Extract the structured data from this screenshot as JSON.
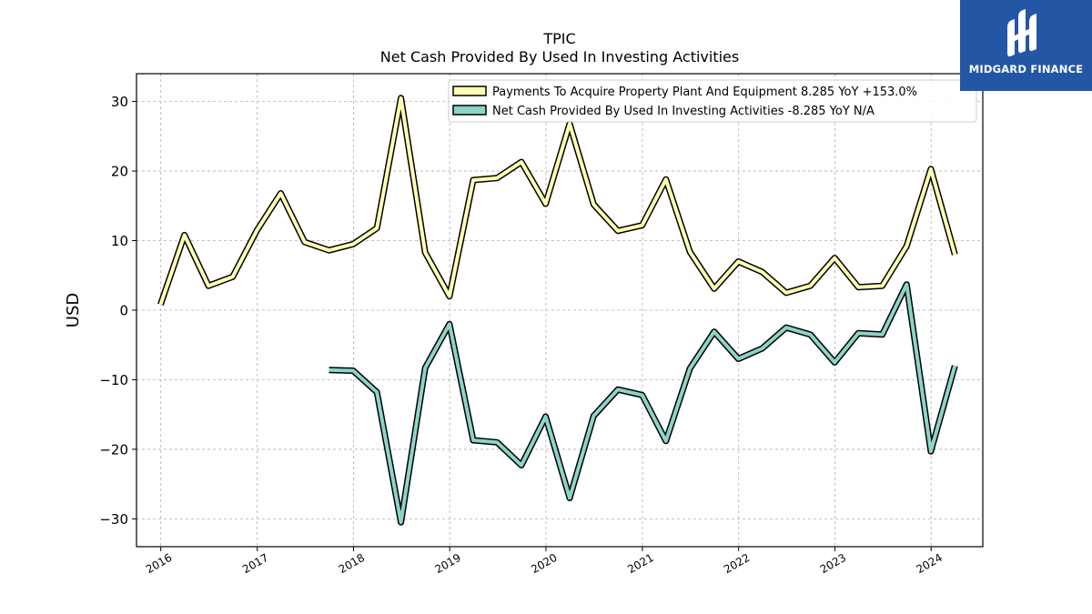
{
  "logo": {
    "text": "MIDGARD FINANCE",
    "background": "#2456a6"
  },
  "chart_data": {
    "type": "line",
    "title": "TPIC",
    "subtitle": "Net Cash Provided By Used In Investing Activities",
    "xlabel": "",
    "ylabel": "USD",
    "xlim": [
      "2015-10-01",
      "2024-07-15"
    ],
    "ylim": [
      -34,
      34
    ],
    "x_ticks": [
      "2016",
      "2017",
      "2018",
      "2019",
      "2020",
      "2021",
      "2022",
      "2023",
      "2024"
    ],
    "y_ticks": [
      -30,
      -20,
      -10,
      0,
      10,
      20,
      30
    ],
    "y_tick_labels": [
      "−30",
      "−20",
      "−10",
      "0",
      "10",
      "20",
      "30"
    ],
    "grid": true,
    "legend_placement": "top-right",
    "series": [
      {
        "name": "Payments To Acquire Property Plant And Equipment",
        "legend_label": "Payments To Acquire Property Plant And Equipment  8.285 YoY +153.0%",
        "color": "#ffffb3",
        "points": [
          [
            "2015-12-31",
            0.8
          ],
          [
            "2016-03-31",
            10.8
          ],
          [
            "2016-06-30",
            3.5
          ],
          [
            "2016-09-30",
            4.8
          ],
          [
            "2016-12-31",
            11.5
          ],
          [
            "2017-03-31",
            16.8
          ],
          [
            "2017-06-30",
            9.8
          ],
          [
            "2017-09-30",
            8.6
          ],
          [
            "2017-12-31",
            9.5
          ],
          [
            "2018-03-31",
            11.8
          ],
          [
            "2018-06-30",
            30.5
          ],
          [
            "2018-09-30",
            8.3
          ],
          [
            "2018-12-31",
            2.0
          ],
          [
            "2019-03-31",
            18.7
          ],
          [
            "2019-06-30",
            19.0
          ],
          [
            "2019-09-30",
            21.3
          ],
          [
            "2019-12-31",
            15.3
          ],
          [
            "2020-03-31",
            26.8
          ],
          [
            "2020-06-30",
            15.2
          ],
          [
            "2020-09-30",
            11.4
          ],
          [
            "2020-12-31",
            12.2
          ],
          [
            "2021-03-31",
            18.8
          ],
          [
            "2021-06-30",
            8.4
          ],
          [
            "2021-09-30",
            3.1
          ],
          [
            "2021-12-31",
            7.0
          ],
          [
            "2022-03-31",
            5.5
          ],
          [
            "2022-06-30",
            2.5
          ],
          [
            "2022-09-30",
            3.5
          ],
          [
            "2022-12-31",
            7.5
          ],
          [
            "2023-03-31",
            3.3
          ],
          [
            "2023-06-30",
            3.5
          ],
          [
            "2023-09-30",
            9.2
          ],
          [
            "2023-12-31",
            20.3
          ],
          [
            "2024-03-31",
            8.0
          ]
        ]
      },
      {
        "name": "Net Cash Provided By Used In Investing Activities",
        "legend_label": "Net Cash Provided By Used In Investing Activities  -8.285 YoY N/A",
        "color": "#8dd3c7",
        "points": [
          [
            "2017-09-30",
            -8.6
          ],
          [
            "2017-12-31",
            -8.7
          ],
          [
            "2018-03-31",
            -11.8
          ],
          [
            "2018-06-30",
            -30.5
          ],
          [
            "2018-09-30",
            -8.3
          ],
          [
            "2018-12-31",
            -2.0
          ],
          [
            "2019-03-31",
            -18.7
          ],
          [
            "2019-06-30",
            -19.0
          ],
          [
            "2019-09-30",
            -22.3
          ],
          [
            "2019-12-31",
            -15.3
          ],
          [
            "2020-03-31",
            -27.0
          ],
          [
            "2020-06-30",
            -15.2
          ],
          [
            "2020-09-30",
            -11.4
          ],
          [
            "2020-12-31",
            -12.2
          ],
          [
            "2021-03-31",
            -18.8
          ],
          [
            "2021-06-30",
            -8.4
          ],
          [
            "2021-09-30",
            -3.1
          ],
          [
            "2021-12-31",
            -7.0
          ],
          [
            "2022-03-31",
            -5.5
          ],
          [
            "2022-06-30",
            -2.5
          ],
          [
            "2022-09-30",
            -3.5
          ],
          [
            "2022-12-31",
            -7.5
          ],
          [
            "2023-03-31",
            -3.3
          ],
          [
            "2023-06-30",
            -3.5
          ],
          [
            "2023-09-30",
            3.7
          ],
          [
            "2023-12-31",
            -20.3
          ],
          [
            "2024-03-31",
            -8.0
          ]
        ]
      }
    ]
  }
}
